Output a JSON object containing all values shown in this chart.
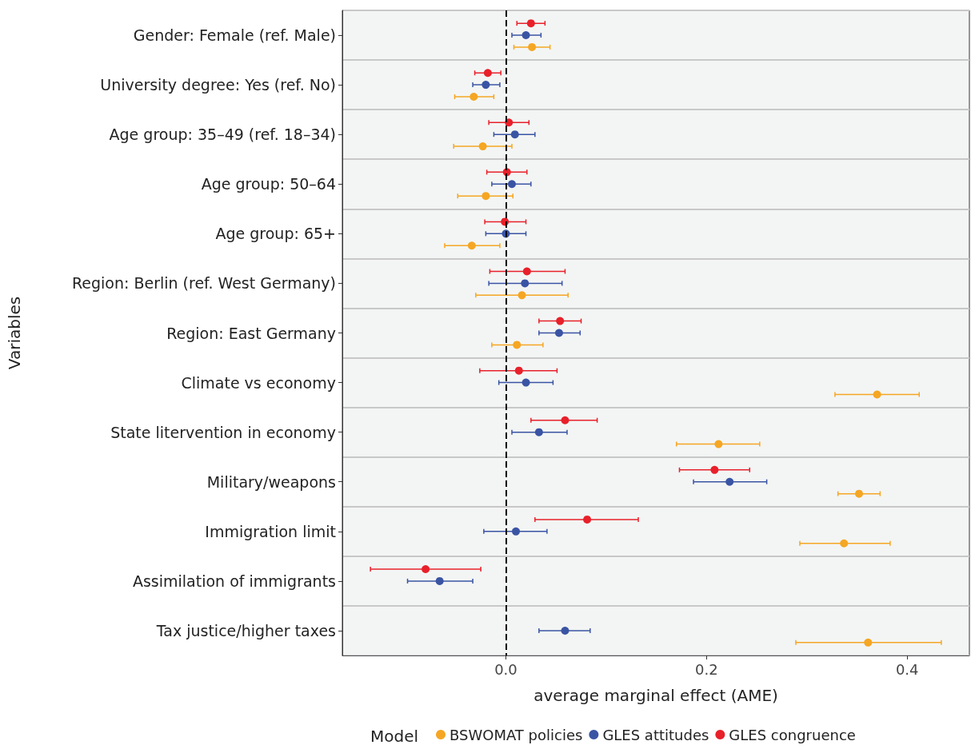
{
  "chart_data": {
    "type": "scatter",
    "orientation": "horizontal",
    "xlabel": "average marginal effect (AME)",
    "ylabel": "Variables",
    "legend_title": "Model",
    "legend": "bottom",
    "grid": "y",
    "marker": "circle",
    "categories": [
      "Gender: Female (ref. Male)",
      "University degree: Yes (ref. No)",
      "Age group: 35–49 (ref. 18–34)",
      "Age group: 50–64",
      "Age group: 65+",
      "Region: Berlin (ref. West Germany)",
      "Region: East Germany",
      "Climate vs economy",
      "State litervention in economy",
      "Military/weapons",
      "Immigration limit",
      "Assimilation of immigrants",
      "Tax justice/higher taxes"
    ],
    "xlim": [
      -0.163,
      0.462
    ],
    "xticks": [
      {
        "value": 0,
        "label": "0.0"
      },
      {
        "value": 0.2,
        "label": "0.2"
      },
      {
        "value": 0.4,
        "label": "0.4"
      }
    ],
    "ref_lines": [
      {
        "axis": "x",
        "value": 0,
        "color": "#000000",
        "line_style": "dashed"
      }
    ],
    "series": [
      {
        "name": "BSWOMAT policies",
        "color": "#f5a623",
        "values": [
          0.026,
          -0.032,
          -0.023,
          -0.02,
          -0.034,
          0.016,
          0.011,
          0.37,
          0.212,
          0.352,
          0.337,
          null,
          0.361
        ],
        "errors": [
          [
            0.008,
            0.044
          ],
          [
            -0.051,
            -0.012
          ],
          [
            -0.052,
            0.006
          ],
          [
            -0.048,
            0.007
          ],
          [
            -0.061,
            -0.006
          ],
          [
            -0.03,
            0.062
          ],
          [
            -0.014,
            0.037
          ],
          [
            0.328,
            0.412
          ],
          [
            0.17,
            0.253
          ],
          [
            0.331,
            0.373
          ],
          [
            0.293,
            0.383
          ],
          null,
          [
            0.289,
            0.434
          ]
        ]
      },
      {
        "name": "GLES attitudes",
        "color": "#3a54a4",
        "values": [
          0.02,
          -0.02,
          0.009,
          0.006,
          0,
          0.019,
          0.053,
          0.02,
          0.033,
          0.223,
          0.01,
          -0.066,
          0.059
        ],
        "errors": [
          [
            0.006,
            0.035
          ],
          [
            -0.033,
            -0.006
          ],
          [
            -0.012,
            0.029
          ],
          [
            -0.014,
            0.025
          ],
          [
            -0.02,
            0.02
          ],
          [
            -0.017,
            0.056
          ],
          [
            0.033,
            0.074
          ],
          [
            -0.007,
            0.047
          ],
          [
            0.006,
            0.061
          ],
          [
            0.187,
            0.26
          ],
          [
            -0.022,
            0.041
          ],
          [
            -0.098,
            -0.033
          ],
          [
            0.033,
            0.084
          ]
        ]
      },
      {
        "name": "GLES congruence",
        "color": "#e8202a",
        "values": [
          0.025,
          -0.018,
          0.003,
          0.001,
          -0.001,
          0.021,
          0.054,
          0.013,
          0.059,
          0.208,
          0.081,
          -0.08,
          null
        ],
        "errors": [
          [
            0.011,
            0.039
          ],
          [
            -0.031,
            -0.005
          ],
          [
            -0.017,
            0.023
          ],
          [
            -0.019,
            0.021
          ],
          [
            -0.021,
            0.02
          ],
          [
            -0.016,
            0.059
          ],
          [
            0.033,
            0.075
          ],
          [
            -0.026,
            0.051
          ],
          [
            0.025,
            0.091
          ],
          [
            0.173,
            0.243
          ],
          [
            0.029,
            0.132
          ],
          [
            -0.135,
            -0.025
          ],
          null
        ]
      }
    ]
  }
}
